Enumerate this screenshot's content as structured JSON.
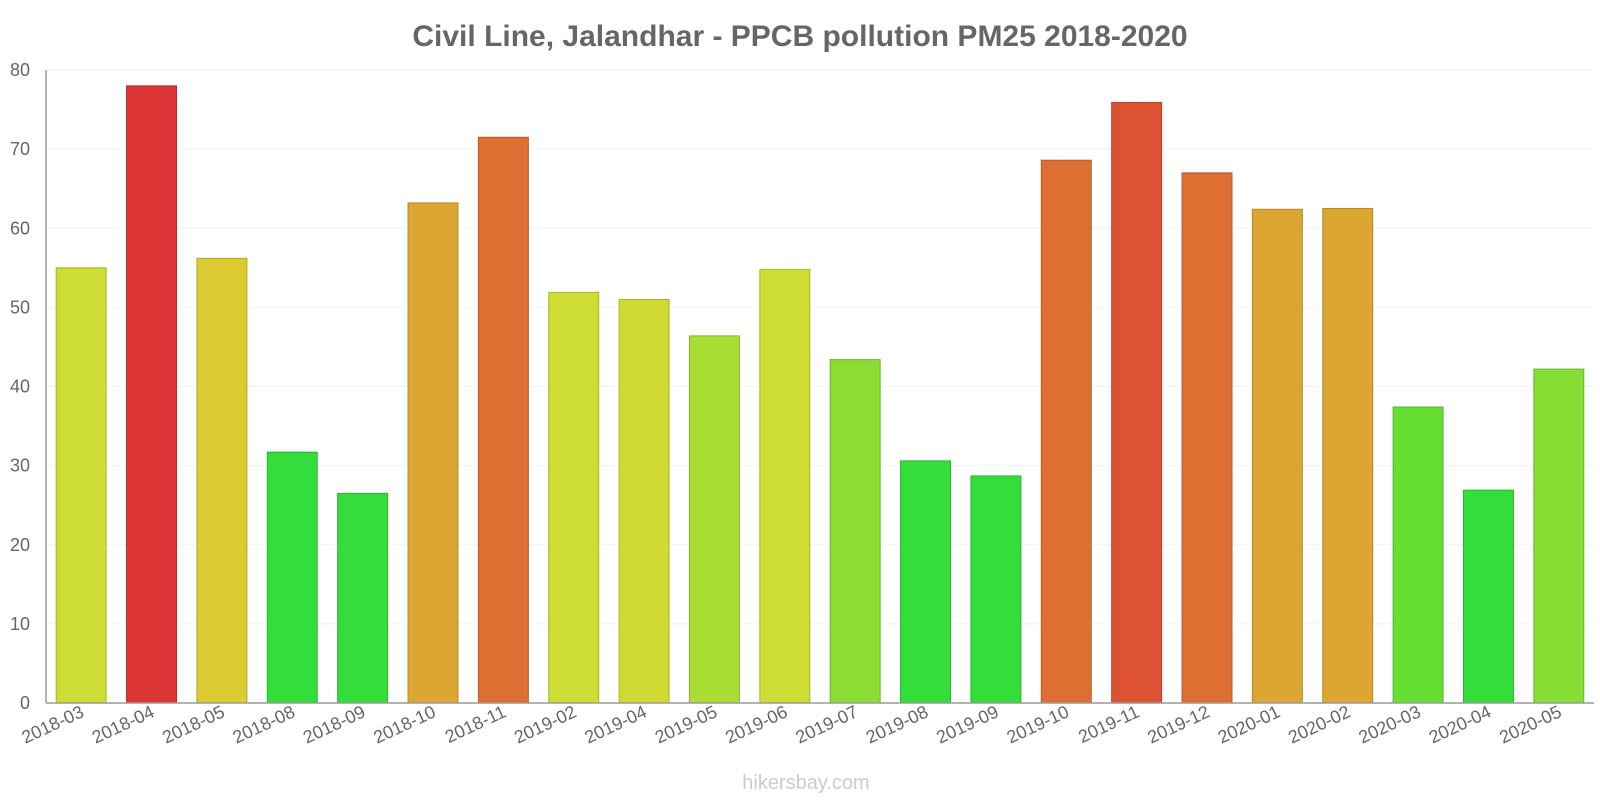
{
  "chart_data": {
    "type": "bar",
    "title": "Civil Line, Jalandhar - PPCB pollution PM25 2018-2020",
    "xlabel": "",
    "ylabel": "",
    "ylim": [
      0,
      80
    ],
    "yticks": [
      0,
      10,
      20,
      30,
      40,
      50,
      60,
      70,
      80
    ],
    "grid": true,
    "categories": [
      "2018-03",
      "2018-04",
      "2018-05",
      "2018-08",
      "2018-09",
      "2018-10",
      "2018-11",
      "2019-02",
      "2019-04",
      "2019-05",
      "2019-06",
      "2019-07",
      "2019-08",
      "2019-09",
      "2019-10",
      "2019-11",
      "2019-12",
      "2020-01",
      "2020-02",
      "2020-03",
      "2020-04",
      "2020-05"
    ],
    "values": [
      55,
      78,
      56.2,
      31.7,
      26.5,
      63.2,
      71.5,
      51.9,
      51,
      46.4,
      54.8,
      43.4,
      30.6,
      28.7,
      68.6,
      75.9,
      67,
      62.4,
      62.5,
      37.4,
      26.9,
      42.2
    ],
    "colors": [
      "#cddd33",
      "#dd3535",
      "#dccb33",
      "#33dd3a",
      "#33dd3a",
      "#dca633",
      "#dd6f33",
      "#cddd33",
      "#cfdb33",
      "#a9dd33",
      "#cddd33",
      "#8bdd33",
      "#33dd3a",
      "#33dd3a",
      "#dd6f33",
      "#dd5233",
      "#dd6f33",
      "#dca633",
      "#dca633",
      "#66dd33",
      "#33dd3a",
      "#86dd33"
    ]
  },
  "watermark": "hikersbay.com"
}
